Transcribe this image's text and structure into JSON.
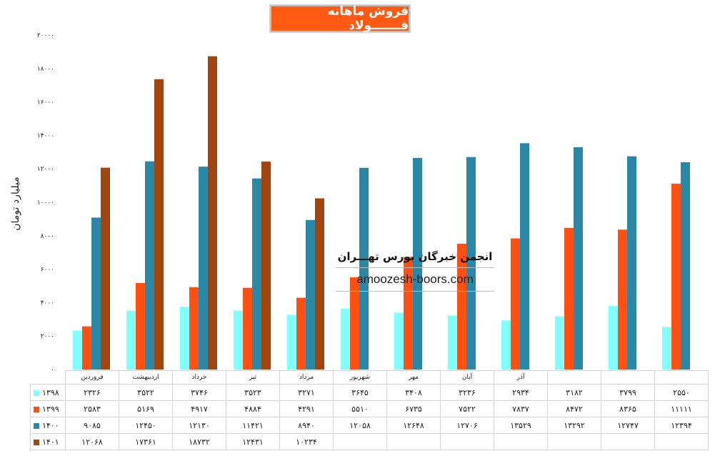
{
  "title": "فروش ماهانه فـــــــولاد",
  "watermark": {
    "line1": "انجمن خبرگان بورس تهـــران",
    "line2": "amoozesh-boors.com"
  },
  "chart_data": {
    "type": "bar",
    "ylabel": "میلیارد تومان",
    "ylim": [
      0,
      20000
    ],
    "yticks": [
      "۰",
      "۲۰۰۰",
      "۴۰۰۰",
      "۶۰۰۰",
      "۸۰۰۰",
      "۱۰۰۰۰",
      "۱۲۰۰۰",
      "۱۴۰۰۰",
      "۱۶۰۰۰",
      "۱۸۰۰۰",
      "۲۰۰۰۰"
    ],
    "categories": [
      "فروردین",
      "اردیبهشت",
      "خرداد",
      "تیر",
      "مرداد",
      "شهریور",
      "مهر",
      "آبان",
      "آذر",
      "",
      "",
      ""
    ],
    "series": [
      {
        "name": "۱۳۹۸",
        "color": "#80ffff",
        "values": [
          2326,
          3522,
          3746,
          3523,
          3271,
          3645,
          3408,
          3236,
          2934,
          3182,
          3799,
          2550
        ],
        "labels": [
          "۲۳۲۶",
          "۳۵۲۲",
          "۳۷۴۶",
          "۳۵۲۳",
          "۳۲۷۱",
          "۳۶۴۵",
          "۳۴۰۸",
          "۳۲۳۶",
          "۲۹۳۴",
          "۳۱۸۲",
          "۳۷۹۹",
          "۲۵۵۰"
        ]
      },
      {
        "name": "۱۳۹۹",
        "color": "#ff5014",
        "values": [
          2583,
          5169,
          4917,
          4884,
          4291,
          5510,
          6735,
          7522,
          7837,
          8472,
          8365,
          11111
        ],
        "labels": [
          "۲۵۸۳",
          "۵۱۶۹",
          "۴۹۱۷",
          "۴۸۸۴",
          "۴۲۹۱",
          "۵۵۱۰",
          "۶۷۳۵",
          "۷۵۲۲",
          "۷۸۳۷",
          "۸۴۷۲",
          "۸۳۶۵",
          "۱۱۱۱۱"
        ]
      },
      {
        "name": "۱۴۰۰",
        "color": "#2b87a6",
        "values": [
          9085,
          12450,
          12130,
          11421,
          8940,
          12058,
          12648,
          12706,
          13529,
          13292,
          12747,
          12394
        ],
        "labels": [
          "۹۰۸۵",
          "۱۲۴۵۰",
          "۱۲۱۳۰",
          "۱۱۴۲۱",
          "۸۹۴۰",
          "۱۲۰۵۸",
          "۱۲۶۴۸",
          "۱۲۷۰۶",
          "۱۳۵۲۹",
          "۱۳۲۹۲",
          "۱۲۷۴۷",
          "۱۲۳۹۴"
        ]
      },
      {
        "name": "۱۴۰۱",
        "color": "#a04410",
        "values": [
          12068,
          17361,
          18732,
          12431,
          10234,
          null,
          null,
          null,
          null,
          null,
          null,
          null
        ],
        "labels": [
          "۱۲۰۶۸",
          "۱۷۳۶۱",
          "۱۸۷۳۲",
          "۱۲۴۳۱",
          "۱۰۲۳۴",
          "",
          "",
          "",
          "",
          "",
          "",
          ""
        ]
      }
    ]
  }
}
